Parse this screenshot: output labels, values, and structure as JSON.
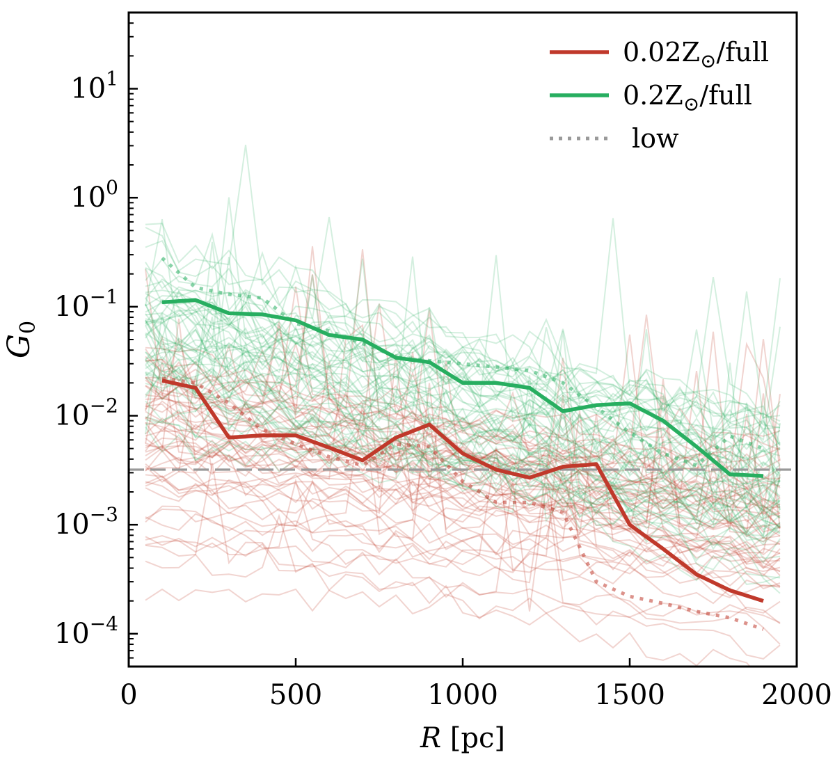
{
  "chart_data": {
    "type": "line",
    "title": "",
    "xlabel": "R [pc]",
    "ylabel": "G0",
    "xlim": [
      0,
      2000
    ],
    "ylim": [
      5e-05,
      50
    ],
    "yscale": "log",
    "grid": false,
    "legend_position": "top-right",
    "x_ticks": [
      0,
      500,
      1000,
      1500,
      2000
    ],
    "y_ticks": [
      {
        "value": 0.0001,
        "mantissa": "10",
        "exponent": "−4"
      },
      {
        "value": 0.001,
        "mantissa": "10",
        "exponent": "−3"
      },
      {
        "value": 0.01,
        "mantissa": "10",
        "exponent": "−2"
      },
      {
        "value": 0.1,
        "mantissa": "10",
        "exponent": "−1"
      },
      {
        "value": 1,
        "mantissa": "10",
        "exponent": "0"
      },
      {
        "value": 10,
        "mantissa": "10",
        "exponent": "1"
      }
    ],
    "reference_line": {
      "y": 0.0032,
      "color": "#999999",
      "style": "dashed"
    },
    "colors": {
      "red": "#c0392b",
      "green": "#27ae60",
      "gray": "#888888"
    },
    "legend": [
      {
        "key": "red_full",
        "label_pre": "0.02Z",
        "label_sub": "⊙",
        "label_post": "/full",
        "color": "#c0392b",
        "style": "solid"
      },
      {
        "key": "green_full",
        "label_pre": "0.2Z",
        "label_sub": "⊙",
        "label_post": "/full",
        "color": "#27ae60",
        "style": "solid"
      },
      {
        "key": "low",
        "label_pre": "low",
        "label_sub": "",
        "label_post": "",
        "color": "#888888",
        "style": "dotted"
      }
    ],
    "series": [
      {
        "key": "red_full",
        "color": "#c0392b",
        "style": "solid",
        "x": [
          100,
          200,
          300,
          400,
          500,
          600,
          700,
          800,
          900,
          1000,
          1100,
          1200,
          1300,
          1400,
          1500,
          1600,
          1700,
          1800,
          1900
        ],
        "values": [
          0.021,
          0.018,
          0.0063,
          0.0066,
          0.0066,
          0.0051,
          0.0039,
          0.0063,
          0.0083,
          0.0045,
          0.0032,
          0.0027,
          0.0034,
          0.0036,
          0.001,
          0.0006,
          0.00035,
          0.00025,
          0.0002
        ]
      },
      {
        "key": "green_full",
        "color": "#27ae60",
        "style": "solid",
        "x": [
          100,
          200,
          300,
          400,
          500,
          600,
          700,
          800,
          900,
          1000,
          1100,
          1200,
          1300,
          1400,
          1500,
          1600,
          1700,
          1800,
          1900
        ],
        "values": [
          0.11,
          0.115,
          0.087,
          0.085,
          0.075,
          0.055,
          0.05,
          0.034,
          0.031,
          0.02,
          0.02,
          0.018,
          0.011,
          0.0125,
          0.013,
          0.009,
          0.0052,
          0.0029,
          0.0028
        ]
      },
      {
        "key": "red_low",
        "color": "#c0392b",
        "style": "dotted",
        "x": [
          100,
          200,
          300,
          400,
          500,
          600,
          700,
          800,
          900,
          1000,
          1100,
          1200,
          1300,
          1400,
          1500,
          1600,
          1700,
          1800,
          1900
        ],
        "values": [
          0.022,
          0.02,
          0.013,
          0.0075,
          0.0055,
          0.0042,
          0.0035,
          0.0055,
          0.0052,
          0.0025,
          0.0016,
          0.0016,
          0.0013,
          0.0003,
          0.00022,
          0.00019,
          0.00016,
          0.00014,
          0.00011
        ]
      },
      {
        "key": "green_low",
        "color": "#27ae60",
        "style": "dotted",
        "x": [
          100,
          200,
          300,
          400,
          500,
          600,
          700,
          800,
          900,
          1000,
          1100,
          1200,
          1300,
          1400,
          1500,
          1600,
          1700,
          1800,
          1900
        ],
        "values": [
          0.28,
          0.15,
          0.13,
          0.12,
          0.07,
          0.06,
          0.046,
          0.035,
          0.032,
          0.03,
          0.028,
          0.026,
          0.02,
          0.012,
          0.007,
          0.0045,
          0.0035,
          0.0065,
          0.005
        ]
      }
    ]
  }
}
